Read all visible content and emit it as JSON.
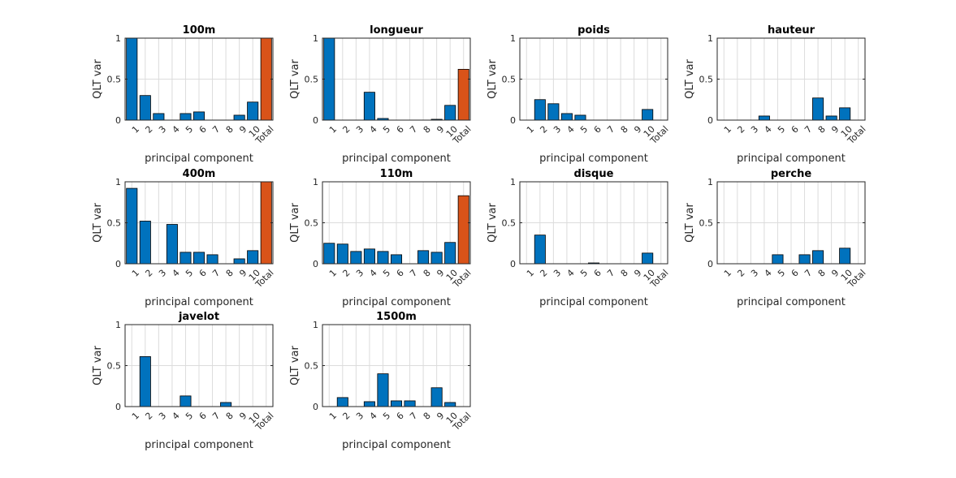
{
  "chart_data": [
    {
      "type": "bar",
      "title": "100m",
      "xlabel": "principal component",
      "ylabel": "QLT var",
      "ylim": [
        0,
        1
      ],
      "yticks": [
        "0",
        "0.5",
        "1"
      ],
      "categories": [
        "1",
        "2",
        "3",
        "4",
        "5",
        "6",
        "7",
        "8",
        "9",
        "10",
        "Total"
      ],
      "values": [
        1.0,
        0.3,
        0.08,
        0,
        0.08,
        0.1,
        0,
        0,
        0.06,
        0.22,
        1.0
      ],
      "colors": {
        "component": "#0072BD",
        "total": "#D95319"
      },
      "grid": true
    },
    {
      "type": "bar",
      "title": "longueur",
      "xlabel": "principal component",
      "ylabel": "QLT var",
      "ylim": [
        0,
        1
      ],
      "yticks": [
        "0",
        "0.5",
        "1"
      ],
      "categories": [
        "1",
        "2",
        "3",
        "4",
        "5",
        "6",
        "7",
        "8",
        "9",
        "10",
        "Total"
      ],
      "values": [
        1.0,
        0,
        0,
        0.34,
        0.02,
        0,
        0,
        0,
        0.01,
        0.18,
        0.62
      ],
      "colors": {
        "component": "#0072BD",
        "total": "#D95319"
      },
      "grid": true
    },
    {
      "type": "bar",
      "title": "poids",
      "xlabel": "principal component",
      "ylabel": "QLT var",
      "ylim": [
        0,
        1
      ],
      "yticks": [
        "0",
        "0.5",
        "1"
      ],
      "categories": [
        "1",
        "2",
        "3",
        "4",
        "5",
        "6",
        "7",
        "8",
        "9",
        "10",
        "Total"
      ],
      "values": [
        0,
        0.25,
        0.2,
        0.08,
        0.06,
        0,
        0,
        0,
        0,
        0.13,
        0
      ],
      "colors": {
        "component": "#0072BD",
        "total": "#D95319"
      },
      "grid": true
    },
    {
      "type": "bar",
      "title": "hauteur",
      "xlabel": "principal component",
      "ylabel": "QLT var",
      "ylim": [
        0,
        1
      ],
      "yticks": [
        "0",
        "0.5",
        "1"
      ],
      "categories": [
        "1",
        "2",
        "3",
        "4",
        "5",
        "6",
        "7",
        "8",
        "9",
        "10",
        "Total"
      ],
      "values": [
        0,
        0,
        0,
        0.05,
        0,
        0,
        0,
        0.27,
        0.05,
        0.15,
        0
      ],
      "colors": {
        "component": "#0072BD",
        "total": "#D95319"
      },
      "grid": true
    },
    {
      "type": "bar",
      "title": "400m",
      "xlabel": "principal component",
      "ylabel": "QLT var",
      "ylim": [
        0,
        1
      ],
      "yticks": [
        "0",
        "0.5",
        "1"
      ],
      "categories": [
        "1",
        "2",
        "3",
        "4",
        "5",
        "6",
        "7",
        "8",
        "9",
        "10",
        "Total"
      ],
      "values": [
        0.92,
        0.52,
        0,
        0.48,
        0.14,
        0.14,
        0.11,
        0,
        0.06,
        0.16,
        1.0
      ],
      "colors": {
        "component": "#0072BD",
        "total": "#D95319"
      },
      "grid": true
    },
    {
      "type": "bar",
      "title": "110m",
      "xlabel": "principal component",
      "ylabel": "QLT var",
      "ylim": [
        0,
        1
      ],
      "yticks": [
        "0",
        "0.5",
        "1"
      ],
      "categories": [
        "1",
        "2",
        "3",
        "4",
        "5",
        "6",
        "7",
        "8",
        "9",
        "10",
        "Total"
      ],
      "values": [
        0.25,
        0.24,
        0.15,
        0.18,
        0.15,
        0.11,
        0,
        0.16,
        0.14,
        0.26,
        0.83
      ],
      "colors": {
        "component": "#0072BD",
        "total": "#D95319"
      },
      "grid": true
    },
    {
      "type": "bar",
      "title": "disque",
      "xlabel": "principal component",
      "ylabel": "QLT var",
      "ylim": [
        0,
        1
      ],
      "yticks": [
        "0",
        "0.5",
        "1"
      ],
      "categories": [
        "1",
        "2",
        "3",
        "4",
        "5",
        "6",
        "7",
        "8",
        "9",
        "10",
        "Total"
      ],
      "values": [
        0,
        0.35,
        0,
        0,
        0,
        0.01,
        0,
        0,
        0,
        0.13,
        0
      ],
      "colors": {
        "component": "#0072BD",
        "total": "#D95319"
      },
      "grid": true
    },
    {
      "type": "bar",
      "title": "perche",
      "xlabel": "principal component",
      "ylabel": "QLT var",
      "ylim": [
        0,
        1
      ],
      "yticks": [
        "0",
        "0.5",
        "1"
      ],
      "categories": [
        "1",
        "2",
        "3",
        "4",
        "5",
        "6",
        "7",
        "8",
        "9",
        "10",
        "Total"
      ],
      "values": [
        0,
        0,
        0,
        0,
        0.11,
        0,
        0.11,
        0.16,
        0,
        0.19,
        0
      ],
      "colors": {
        "component": "#0072BD",
        "total": "#D95319"
      },
      "grid": true
    },
    {
      "type": "bar",
      "title": "javelot",
      "xlabel": "principal component",
      "ylabel": "QLT var",
      "ylim": [
        0,
        1
      ],
      "yticks": [
        "0",
        "0.5",
        "1"
      ],
      "categories": [
        "1",
        "2",
        "3",
        "4",
        "5",
        "6",
        "7",
        "8",
        "9",
        "10",
        "Total"
      ],
      "values": [
        0,
        0.61,
        0,
        0,
        0.13,
        0,
        0,
        0.05,
        0,
        0,
        0
      ],
      "colors": {
        "component": "#0072BD",
        "total": "#D95319"
      },
      "grid": true
    },
    {
      "type": "bar",
      "title": "1500m",
      "xlabel": "principal component",
      "ylabel": "QLT var",
      "ylim": [
        0,
        1
      ],
      "yticks": [
        "0",
        "0.5",
        "1"
      ],
      "categories": [
        "1",
        "2",
        "3",
        "4",
        "5",
        "6",
        "7",
        "8",
        "9",
        "10",
        "Total"
      ],
      "values": [
        0,
        0.11,
        0,
        0.06,
        0.4,
        0.07,
        0.07,
        0,
        0.23,
        0.05,
        0
      ],
      "colors": {
        "component": "#0072BD",
        "total": "#D95319"
      },
      "grid": true
    }
  ]
}
